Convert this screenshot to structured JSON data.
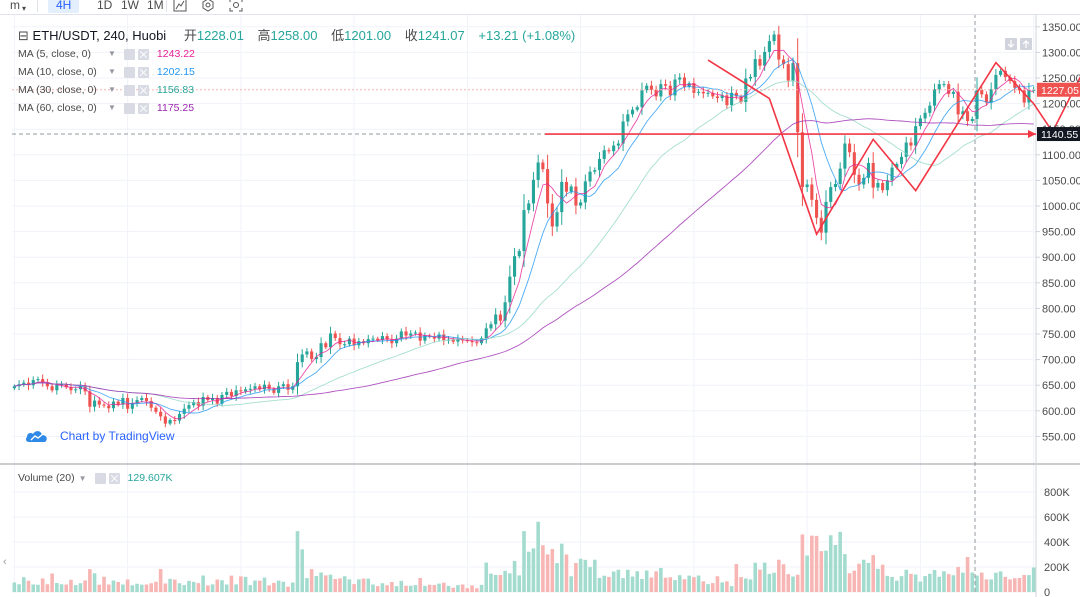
{
  "toolbar": {
    "items": [
      "m",
      "4H",
      "1D",
      "1W",
      "1M"
    ],
    "active": "4H"
  },
  "legend": {
    "symbol": "ETH/USDT, 240, Huobi",
    "open_label": "开",
    "open": "1228.01",
    "high_label": "高",
    "high": "1258.00",
    "low_label": "低",
    "low": "1201.00",
    "close_label": "收",
    "close": "1241.07",
    "change": "+13.21 (+1.08%)"
  },
  "mas": [
    {
      "name": "MA (5, close, 0)",
      "value": "1243.22",
      "color": "#e91e96",
      "period": 5
    },
    {
      "name": "MA (10, close, 0)",
      "value": "1202.15",
      "color": "#2196f3",
      "period": 10
    },
    {
      "name": "MA (30, close, 0)",
      "value": "1156.83",
      "color": "#26a69a",
      "period": 30
    },
    {
      "name": "MA (60, close, 0)",
      "value": "1175.25",
      "color": "#9c27b0",
      "period": 60
    }
  ],
  "volume_legend": {
    "name": "Volume (20)",
    "value": "129.607K"
  },
  "watermark": "Chart by TradingView",
  "colors": {
    "up": "#26a69a",
    "down": "#ef5350",
    "up_vol": "#a3dccf",
    "down_vol": "#f7b6b4",
    "drawing": "#f23645",
    "ma_light": "#8fd6c3"
  },
  "chart_data": {
    "type": "candlestick",
    "title": "ETH/USDT, 240, Huobi",
    "price_axis": {
      "min": 500,
      "max": 1375,
      "ticks": [
        "550.00",
        "600.00",
        "650.00",
        "700.00",
        "750.00",
        "800.00",
        "850.00",
        "900.00",
        "950.00",
        "1000.00",
        "1050.00",
        "1100.00",
        "1150.00",
        "1200.00",
        "1250.00",
        "1300.00",
        "1350.00"
      ]
    },
    "volume_axis": {
      "max": 960,
      "unit": "K",
      "ticks": [
        "0",
        "200K",
        "400K",
        "600K",
        "800K"
      ]
    },
    "price_labels": {
      "last": "1227.05",
      "horizontal_line": "1140.55"
    },
    "horizontal_line_value": 1140.55,
    "last_price": 1227.05,
    "closes": [
      648,
      652,
      655,
      650,
      660,
      662,
      656,
      648,
      640,
      651,
      652,
      646,
      640,
      642,
      648,
      638,
      608,
      620,
      612,
      610,
      605,
      618,
      612,
      625,
      604,
      615,
      621,
      625,
      619,
      606,
      598,
      589,
      575,
      582,
      581,
      594,
      604,
      611,
      617,
      610,
      627,
      621,
      625,
      614,
      631,
      637,
      629,
      640,
      638,
      642,
      643,
      648,
      642,
      651,
      643,
      635,
      648,
      652,
      641,
      648,
      695,
      710,
      716,
      701,
      705,
      732,
      724,
      751,
      742,
      730,
      730,
      741,
      728,
      736,
      732,
      740,
      741,
      738,
      746,
      739,
      732,
      741,
      755,
      747,
      751,
      753,
      737,
      747,
      745,
      741,
      749,
      738,
      739,
      735,
      740,
      738,
      737,
      734,
      732,
      742,
      761,
      769,
      788,
      776,
      812,
      862,
      902,
      912,
      992,
      1005,
      1051,
      1085,
      1072,
      1005,
      960,
      988,
      1047,
      1028,
      1038,
      1001,
      1007,
      1048,
      1067,
      1070,
      1092,
      1109,
      1107,
      1118,
      1122,
      1165,
      1179,
      1188,
      1193,
      1226,
      1235,
      1227,
      1214,
      1238,
      1235,
      1216,
      1247,
      1251,
      1233,
      1240,
      1221,
      1223,
      1220,
      1221,
      1214,
      1211,
      1216,
      1197,
      1221,
      1214,
      1203,
      1249,
      1252,
      1287,
      1274,
      1301,
      1322,
      1335,
      1286,
      1277,
      1245,
      1279,
      1144,
      1037,
      1042,
      1012,
      977,
      948,
      1008,
      1037,
      1043,
      1073,
      1122,
      1105,
      1061,
      1042,
      1055,
      1084,
      1036,
      1045,
      1031,
      1050,
      1075,
      1082,
      1096,
      1124,
      1118,
      1156,
      1171,
      1182,
      1196,
      1228,
      1238,
      1238,
      1219,
      1223,
      1179,
      1185,
      1166,
      1170,
      1227,
      1218,
      1202,
      1228,
      1256,
      1264,
      1252,
      1244,
      1231,
      1226,
      1202,
      1227,
      1227
    ],
    "volumes_k": [
      76,
      62,
      118,
      90,
      60,
      58,
      108,
      62,
      148,
      72,
      62,
      60,
      98,
      55,
      70,
      92,
      183,
      150,
      58,
      122,
      60,
      92,
      80,
      60,
      100,
      54,
      66,
      59,
      60,
      70,
      82,
      184,
      68,
      105,
      99,
      70,
      55,
      89,
      81,
      71,
      132,
      53,
      61,
      100,
      94,
      60,
      131,
      61,
      125,
      121,
      55,
      92,
      91,
      115,
      53,
      73,
      91,
      82,
      43,
      76,
      487,
      341,
      111,
      183,
      128,
      156,
      133,
      139,
      104,
      109,
      126,
      101,
      63,
      101,
      107,
      107,
      60,
      47,
      70,
      54,
      80,
      47,
      89,
      50,
      50,
      55,
      112,
      49,
      58,
      56,
      67,
      74,
      49,
      34,
      55,
      60,
      31,
      53,
      30,
      57,
      235,
      147,
      136,
      136,
      169,
      149,
      248,
      133,
      487,
      322,
      349,
      562,
      374,
      301,
      344,
      231,
      387,
      300,
      126,
      232,
      266,
      257,
      199,
      258,
      113,
      130,
      121,
      164,
      178,
      111,
      178,
      124,
      166,
      104,
      172,
      116,
      165,
      192,
      114,
      118,
      95,
      134,
      102,
      131,
      119,
      132,
      85,
      63,
      71,
      126,
      77,
      85,
      47,
      224,
      119,
      108,
      101,
      234,
      179,
      235,
      145,
      154,
      258,
      222,
      143,
      124,
      138,
      460,
      292,
      451,
      449,
      327,
      331,
      454,
      376,
      481,
      303,
      150,
      171,
      226,
      258,
      232,
      295,
      185,
      218,
      129,
      120,
      91,
      127,
      178,
      145,
      140,
      83,
      128,
      146,
      176,
      122,
      166,
      143,
      134,
      200,
      155,
      280,
      156,
      132,
      155,
      101,
      101,
      154,
      165,
      121,
      101,
      110,
      112,
      136,
      135,
      196,
      162,
      99,
      87,
      101,
      73,
      132,
      87,
      28,
      34
    ]
  }
}
